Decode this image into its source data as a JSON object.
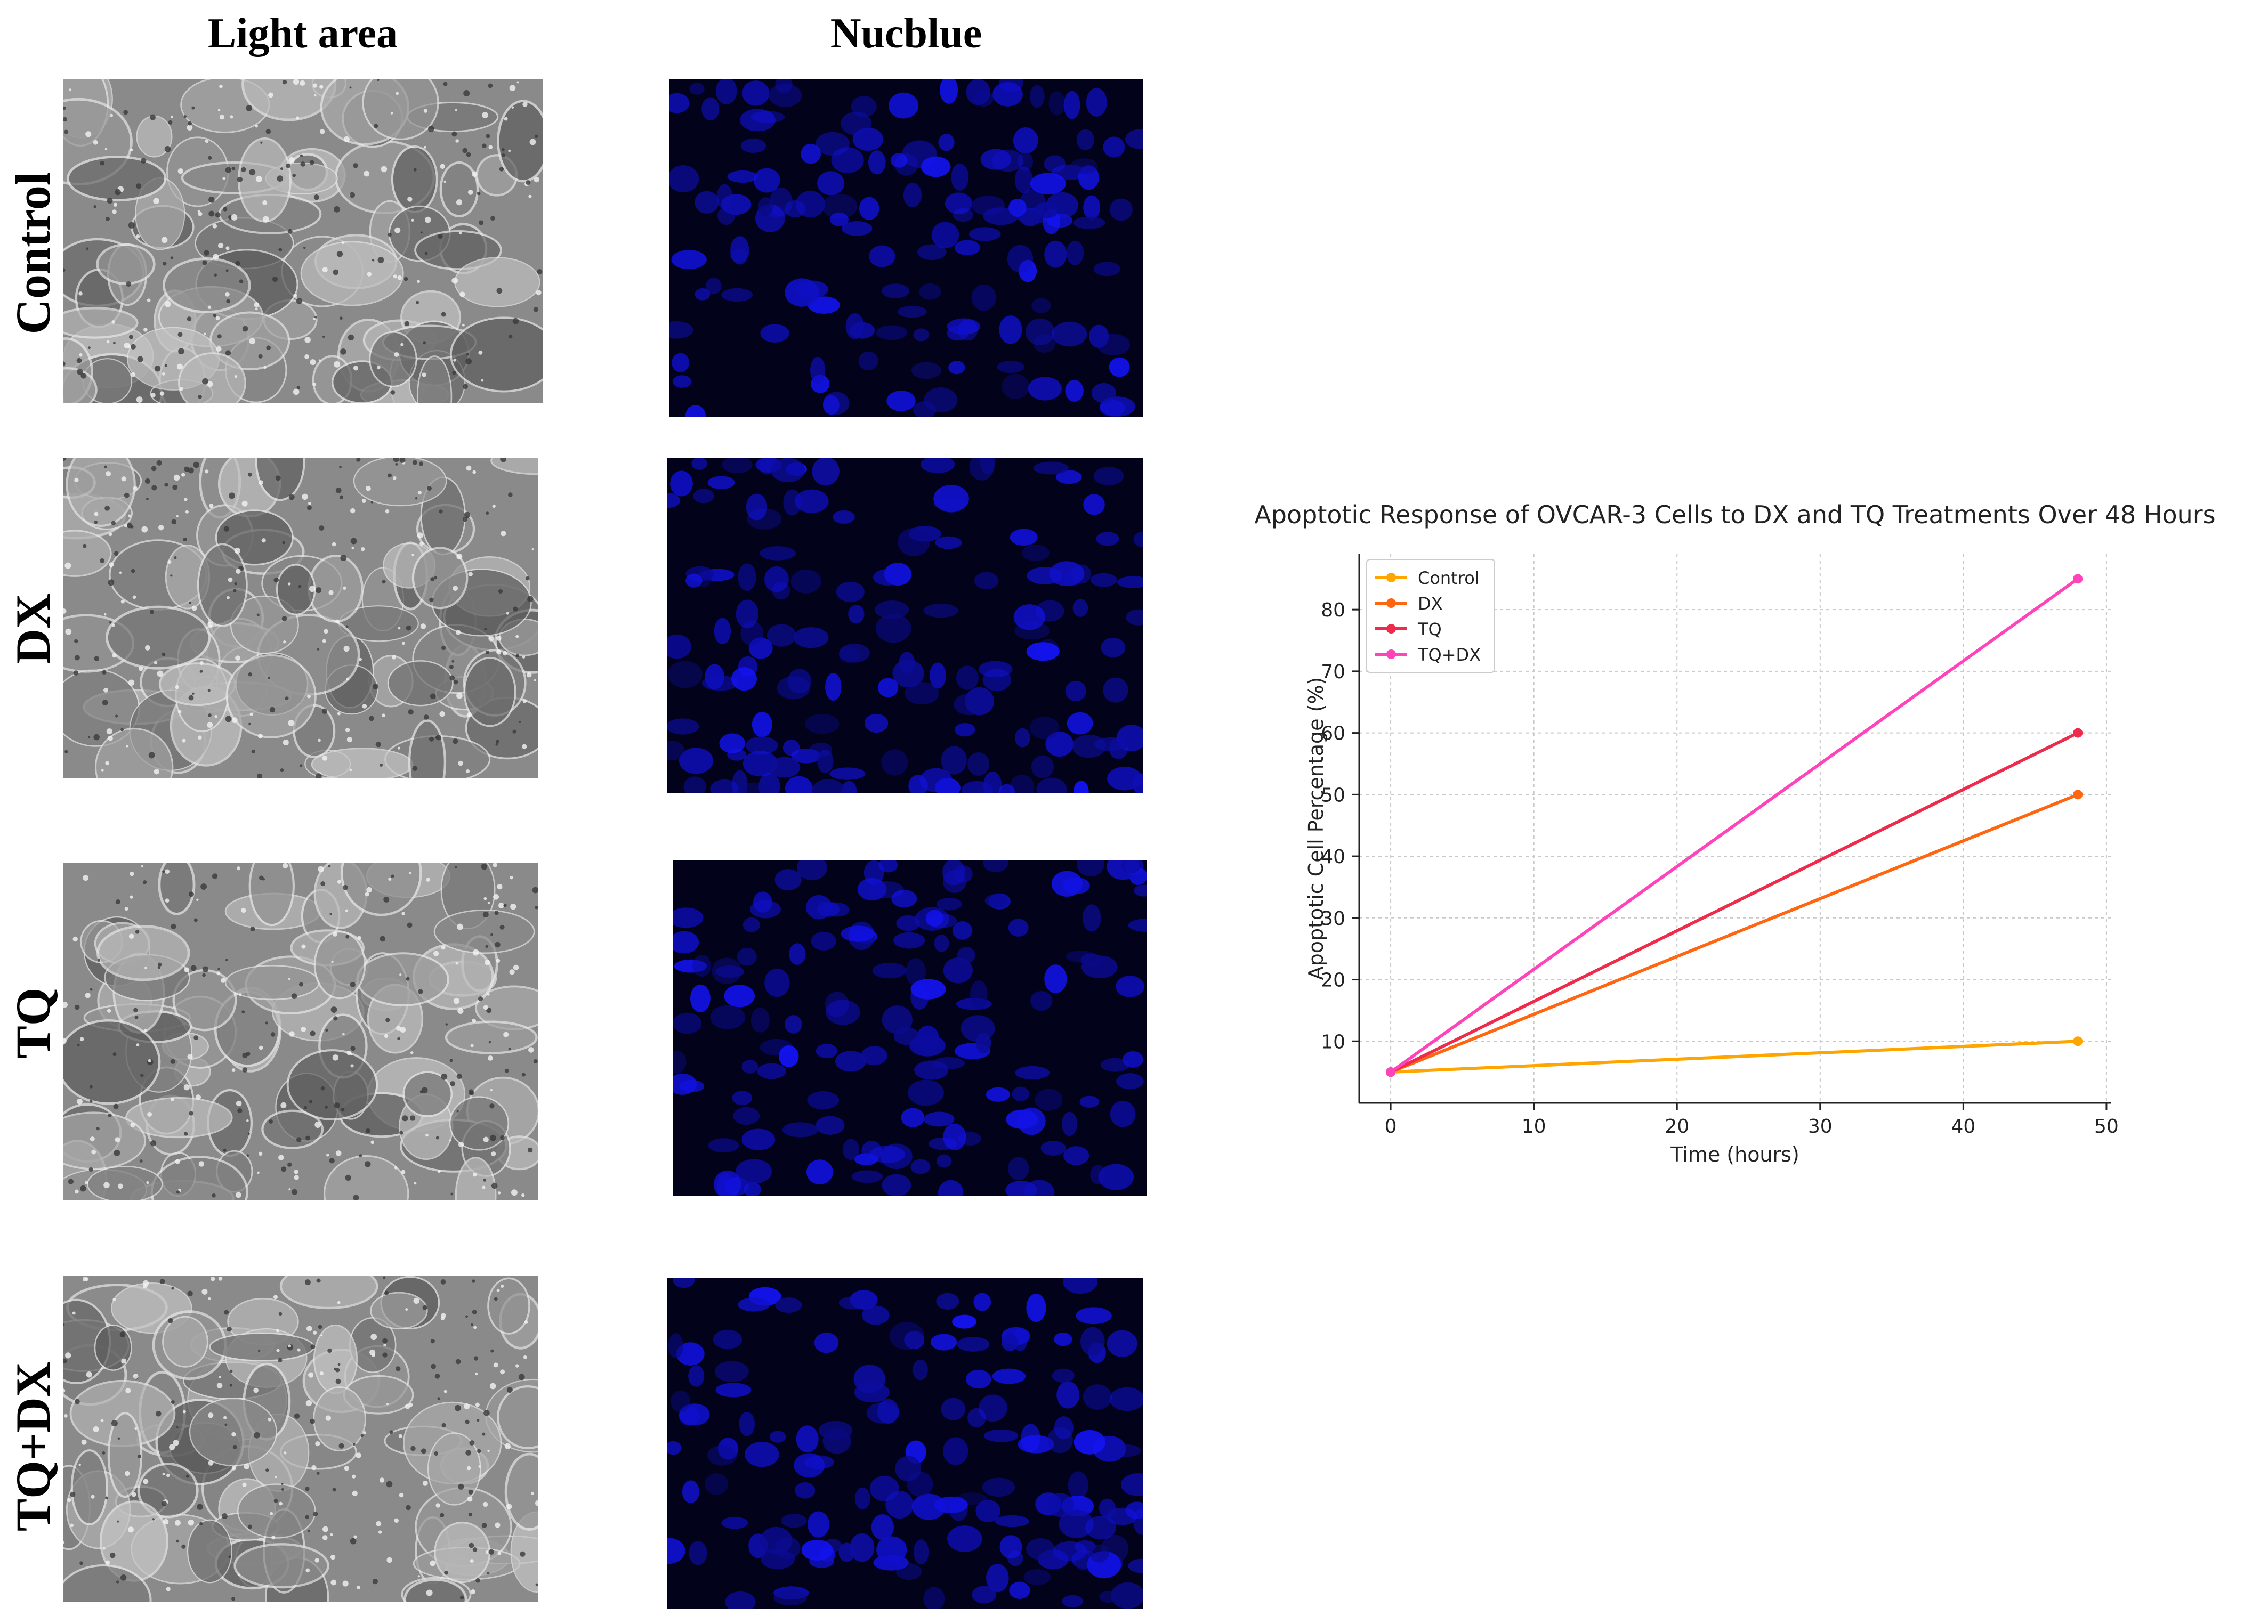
{
  "headers": {
    "light": "Light area",
    "nucblue": "Nucblue"
  },
  "rows": [
    "Control",
    "DX",
    "TQ",
    "TQ+DX"
  ],
  "chart_data": {
    "type": "line",
    "title": "Apoptotic Response of OVCAR-3 Cells to DX and TQ Treatments Over 48 Hours",
    "xlabel": "Time (hours)",
    "ylabel": "Apoptotic Cell Percentage (%)",
    "xlim": [
      -2.2,
      50.3
    ],
    "ylim": [
      0,
      89
    ],
    "xticks": [
      0,
      10,
      20,
      30,
      40,
      50
    ],
    "yticks": [
      10,
      20,
      30,
      40,
      50,
      60,
      70,
      80
    ],
    "grid": true,
    "legend_position": "top-left",
    "x": [
      0,
      48
    ],
    "series": [
      {
        "name": "Control",
        "values": [
          5,
          10
        ],
        "color": "#ffa500"
      },
      {
        "name": "DX",
        "values": [
          5,
          50
        ],
        "color": "#ff6611"
      },
      {
        "name": "TQ",
        "values": [
          5,
          60
        ],
        "color": "#ee2b4a"
      },
      {
        "name": "TQ+DX",
        "values": [
          5,
          85
        ],
        "color": "#ff44bb"
      }
    ]
  }
}
